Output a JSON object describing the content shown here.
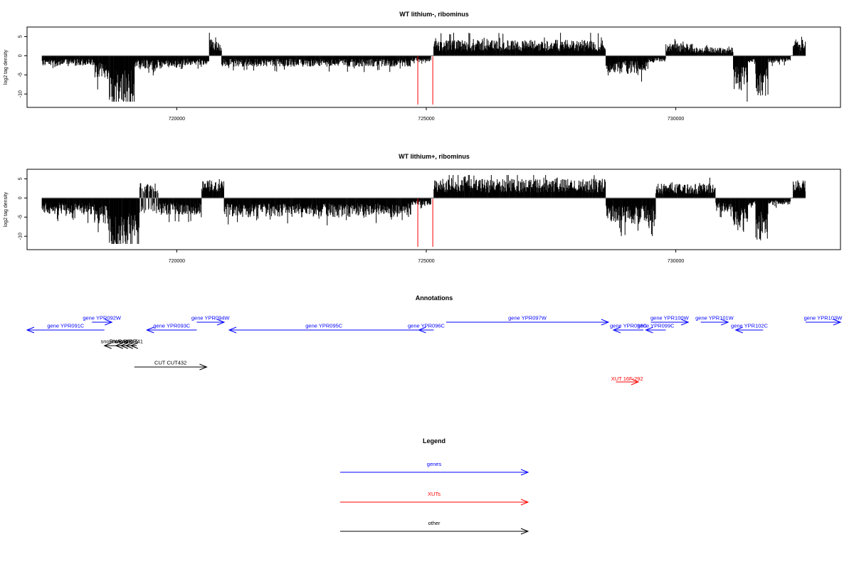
{
  "colors": {
    "gene": "#0000ff",
    "xut": "#ff0000",
    "other": "#000000",
    "signal": "#000000",
    "marker": "#ff0000",
    "baseline": "#777777"
  },
  "chart_data": [
    {
      "type": "bar",
      "title": "WT lithium-, ribominus",
      "ylabel": "log2 tag density",
      "xlim": [
        717000,
        733300
      ],
      "ylim": [
        -13.5,
        7.5
      ],
      "xticks": [
        720000,
        725000,
        730000
      ],
      "xtick_labels": [
        "720000",
        "725000",
        "730000"
      ],
      "yticks": [
        5,
        0,
        -5,
        -10
      ],
      "ytick_labels": [
        "5",
        "0",
        "-5",
        "-10"
      ],
      "markers": [
        724830,
        725130
      ],
      "segments": [
        {
          "x0": 717300,
          "x1": 718350,
          "mode": "neg",
          "base": 2.2
        },
        {
          "x0": 718350,
          "x1": 718650,
          "mode": "neg",
          "base": 5
        },
        {
          "x0": 718650,
          "x1": 719150,
          "mode": "neg",
          "base": 10.5
        },
        {
          "x0": 719150,
          "x1": 719700,
          "mode": "neg",
          "base": 3
        },
        {
          "x0": 719700,
          "x1": 720200,
          "mode": "neg",
          "base": 2.5
        },
        {
          "x0": 720200,
          "x1": 720650,
          "mode": "neg",
          "base": 2
        },
        {
          "x0": 720650,
          "x1": 720900,
          "mode": "pos",
          "base": 3.5
        },
        {
          "x0": 720900,
          "x1": 724700,
          "mode": "neg",
          "base": 2.3
        },
        {
          "x0": 724700,
          "x1": 725100,
          "mode": "neg",
          "base": 1.2
        },
        {
          "x0": 725150,
          "x1": 728600,
          "mode": "pos",
          "base": 3.3
        },
        {
          "x0": 728600,
          "x1": 729450,
          "mode": "neg",
          "base": 3.8
        },
        {
          "x0": 729450,
          "x1": 729800,
          "mode": "neg",
          "base": 1.5
        },
        {
          "x0": 729800,
          "x1": 730350,
          "mode": "pos",
          "base": 2.6
        },
        {
          "x0": 730350,
          "x1": 731150,
          "mode": "pos",
          "base": 1.8
        },
        {
          "x0": 731150,
          "x1": 731450,
          "mode": "neg",
          "base": 7.5
        },
        {
          "x0": 731450,
          "x1": 731600,
          "mode": "neg",
          "base": 1.5
        },
        {
          "x0": 731600,
          "x1": 731850,
          "mode": "neg",
          "base": 8.5
        },
        {
          "x0": 731850,
          "x1": 732300,
          "mode": "neg",
          "base": 1.5
        },
        {
          "x0": 732350,
          "x1": 732600,
          "mode": "pos",
          "base": 3.5
        }
      ]
    },
    {
      "type": "bar",
      "title": "WT lithium+, ribominus",
      "ylabel": "log2 tag density",
      "xlim": [
        717000,
        733300
      ],
      "ylim": [
        -13.5,
        7.5
      ],
      "xticks": [
        720000,
        725000,
        730000
      ],
      "xtick_labels": [
        "720000",
        "725000",
        "730000"
      ],
      "yticks": [
        5,
        0,
        -5,
        -10
      ],
      "ytick_labels": [
        "5",
        "0",
        "-5",
        "-10"
      ],
      "markers": [
        724830,
        725130
      ],
      "segments": [
        {
          "x0": 717300,
          "x1": 718350,
          "mode": "neg",
          "base": 3.5
        },
        {
          "x0": 718350,
          "x1": 718650,
          "mode": "neg",
          "base": 5.5
        },
        {
          "x0": 718650,
          "x1": 719250,
          "mode": "neg",
          "base": 11
        },
        {
          "x0": 719250,
          "x1": 719650,
          "mode": "mix",
          "base": 3.2
        },
        {
          "x0": 719650,
          "x1": 720500,
          "mode": "neg",
          "base": 3.5
        },
        {
          "x0": 720500,
          "x1": 720950,
          "mode": "pos",
          "base": 3.8
        },
        {
          "x0": 720950,
          "x1": 724700,
          "mode": "neg",
          "base": 4
        },
        {
          "x0": 724700,
          "x1": 725100,
          "mode": "neg",
          "base": 1.5
        },
        {
          "x0": 725150,
          "x1": 728600,
          "mode": "pos",
          "base": 4
        },
        {
          "x0": 728600,
          "x1": 729600,
          "mode": "neg",
          "base": 5.5
        },
        {
          "x0": 729600,
          "x1": 730800,
          "mode": "pos",
          "base": 3
        },
        {
          "x0": 730800,
          "x1": 731150,
          "mode": "neg",
          "base": 3
        },
        {
          "x0": 731150,
          "x1": 731450,
          "mode": "neg",
          "base": 7
        },
        {
          "x0": 731450,
          "x1": 731600,
          "mode": "neg",
          "base": 2
        },
        {
          "x0": 731600,
          "x1": 731850,
          "mode": "neg",
          "base": 9
        },
        {
          "x0": 731850,
          "x1": 732300,
          "mode": "neg",
          "base": 1.5
        },
        {
          "x0": 732350,
          "x1": 732600,
          "mode": "pos",
          "base": 4.5
        }
      ]
    }
  ],
  "annotations": {
    "title": "Annotations",
    "features": [
      {
        "label": "gene YPR091C",
        "type": "gene",
        "x0": 717000,
        "x1": 718550,
        "strand": "-",
        "row": 2
      },
      {
        "label": "gene YPR092W",
        "type": "gene",
        "x0": 718300,
        "x1": 718700,
        "strand": "+",
        "row": 1
      },
      {
        "label": "gene YPR093C",
        "type": "gene",
        "x0": 719400,
        "x1": 720400,
        "strand": "-",
        "row": 2
      },
      {
        "label": "gene YPR094W",
        "type": "gene",
        "x0": 720400,
        "x1": 720950,
        "strand": "+",
        "row": 1
      },
      {
        "label": "gene YPR095C",
        "type": "gene",
        "x0": 721050,
        "x1": 724850,
        "strand": "-",
        "row": 2
      },
      {
        "label": "gene YPR096C",
        "type": "gene",
        "x0": 724850,
        "x1": 725150,
        "strand": "-",
        "row": 2
      },
      {
        "label": "gene YPR097W",
        "type": "gene",
        "x0": 725400,
        "x1": 728650,
        "strand": "+",
        "row": 1
      },
      {
        "label": "gene YPR098C",
        "type": "gene",
        "x0": 728750,
        "x1": 729350,
        "strand": "-",
        "row": 2
      },
      {
        "label": "gene YPR099C",
        "type": "gene",
        "x0": 729400,
        "x1": 729800,
        "strand": "-",
        "row": 2
      },
      {
        "label": "gene YPR100W",
        "type": "gene",
        "x0": 729500,
        "x1": 730250,
        "strand": "+",
        "row": 1
      },
      {
        "label": "gene YPR101W",
        "type": "gene",
        "x0": 730500,
        "x1": 731050,
        "strand": "+",
        "row": 1
      },
      {
        "label": "gene YPR102C",
        "type": "gene",
        "x0": 731200,
        "x1": 731750,
        "strand": "-",
        "row": 2
      },
      {
        "label": "gene YPR103W",
        "type": "gene",
        "x0": 732600,
        "x1": 733300,
        "strand": "+",
        "row": 1
      },
      {
        "label": "snoRNA",
        "type": "other",
        "x0": 718550,
        "x1": 718800,
        "strand": "-",
        "row": 3
      },
      {
        "label": "snoR44",
        "type": "other",
        "x0": 718780,
        "x1": 718900,
        "strand": "-",
        "row": 3
      },
      {
        "label": "snoR89",
        "type": "other",
        "x0": 718880,
        "x1": 719000,
        "strand": "-",
        "row": 3
      },
      {
        "label": "snoR15",
        "type": "other",
        "x0": 718980,
        "x1": 719100,
        "strand": "-",
        "row": 3
      },
      {
        "label": "snoR41",
        "type": "other",
        "x0": 719080,
        "x1": 719200,
        "strand": "-",
        "row": 3
      },
      {
        "label": "CUT CUT432",
        "type": "other",
        "x0": 719150,
        "x1": 720600,
        "strand": "+",
        "row": 4
      },
      {
        "label": "XUT 16F-292",
        "type": "xut",
        "x0": 728800,
        "x1": 729250,
        "strand": "+",
        "row": 5
      }
    ]
  },
  "legend": {
    "title": "Legend",
    "items": [
      {
        "label": "genes",
        "type": "gene"
      },
      {
        "label": "XUTs",
        "type": "xut"
      },
      {
        "label": "other",
        "type": "other"
      }
    ]
  }
}
